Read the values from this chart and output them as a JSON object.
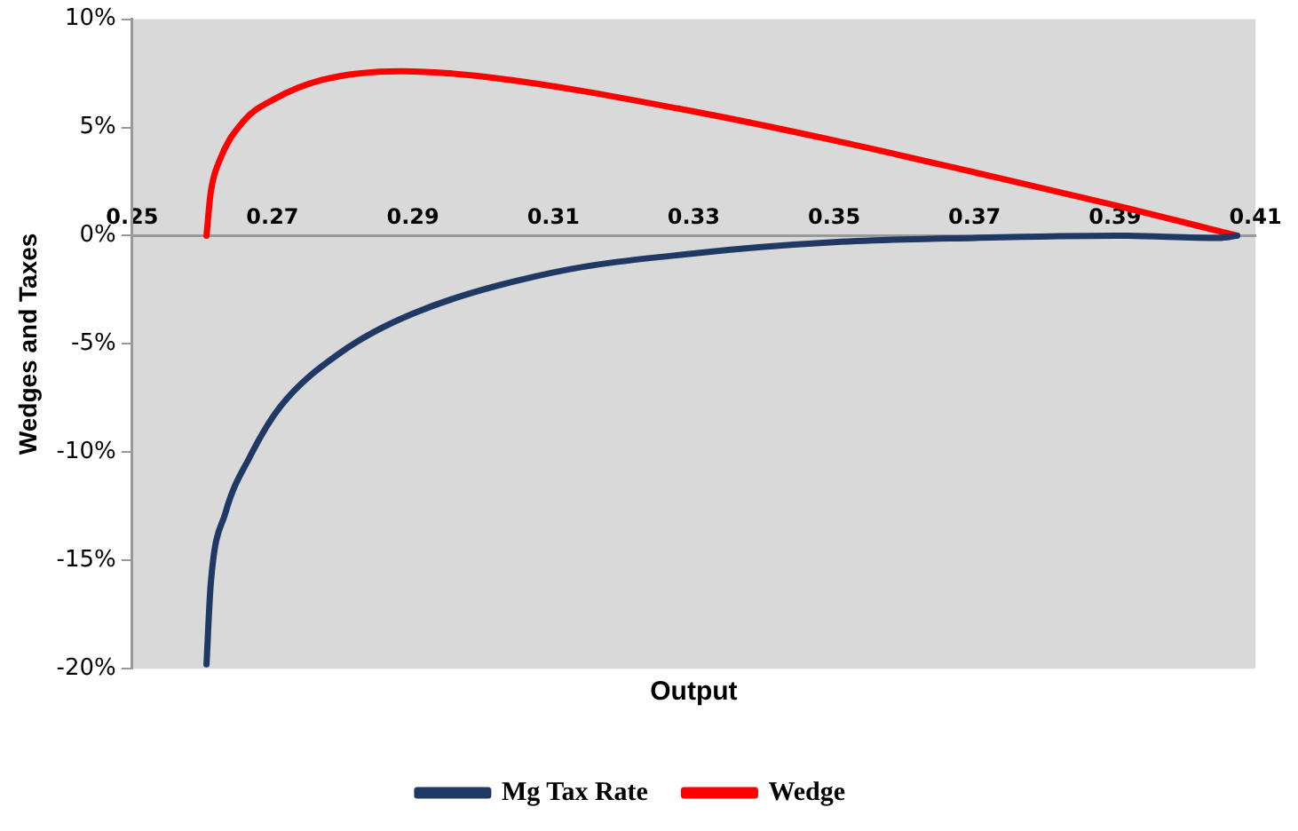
{
  "chart_data": {
    "type": "line",
    "xlabel": "Output",
    "ylabel": "Wedges and Taxes",
    "xlim": [
      0.25,
      0.41
    ],
    "xticks": [
      0.25,
      0.27,
      0.29,
      0.31,
      0.33,
      0.35,
      0.37,
      0.39,
      0.41
    ],
    "ylim": [
      -20,
      10
    ],
    "yticks": [
      {
        "value": -20,
        "label": "-20%"
      },
      {
        "value": -15,
        "label": "-15%"
      },
      {
        "value": -10,
        "label": "-10%"
      },
      {
        "value": -5,
        "label": "-5%"
      },
      {
        "value": 0,
        "label": "0%"
      },
      {
        "value": 5,
        "label": "5%"
      },
      {
        "value": 10,
        "label": "10%"
      }
    ],
    "grid": false,
    "legend": "bottom",
    "marker": "none",
    "line_style": "solid",
    "series": [
      {
        "name": "Mg Tax Rate",
        "color": "#1f3864",
        "x": [
          0.2606,
          0.2612,
          0.2633,
          0.2668,
          0.2711,
          0.2797,
          0.29,
          0.31,
          0.3306,
          0.35,
          0.3702,
          0.39,
          0.4048,
          0.4074
        ],
        "values": [
          -19.8,
          -16.1,
          -12.8,
          -10.2,
          -7.9,
          -5.4,
          -3.6,
          -1.7,
          -0.8,
          -0.3,
          -0.1,
          0,
          -0.1,
          0
        ]
      },
      {
        "name": "Wedge",
        "color": "#ff0000",
        "x": [
          0.2606,
          0.2612,
          0.2625,
          0.2659,
          0.2702,
          0.2771,
          0.2883,
          0.3013,
          0.3306,
          0.35,
          0.3703,
          0.3901,
          0.4074
        ],
        "values": [
          0,
          2.0,
          3.5,
          5.3,
          6.3,
          7.2,
          7.6,
          7.3,
          5.7,
          4.4,
          2.9,
          1.4,
          0
        ]
      }
    ]
  }
}
